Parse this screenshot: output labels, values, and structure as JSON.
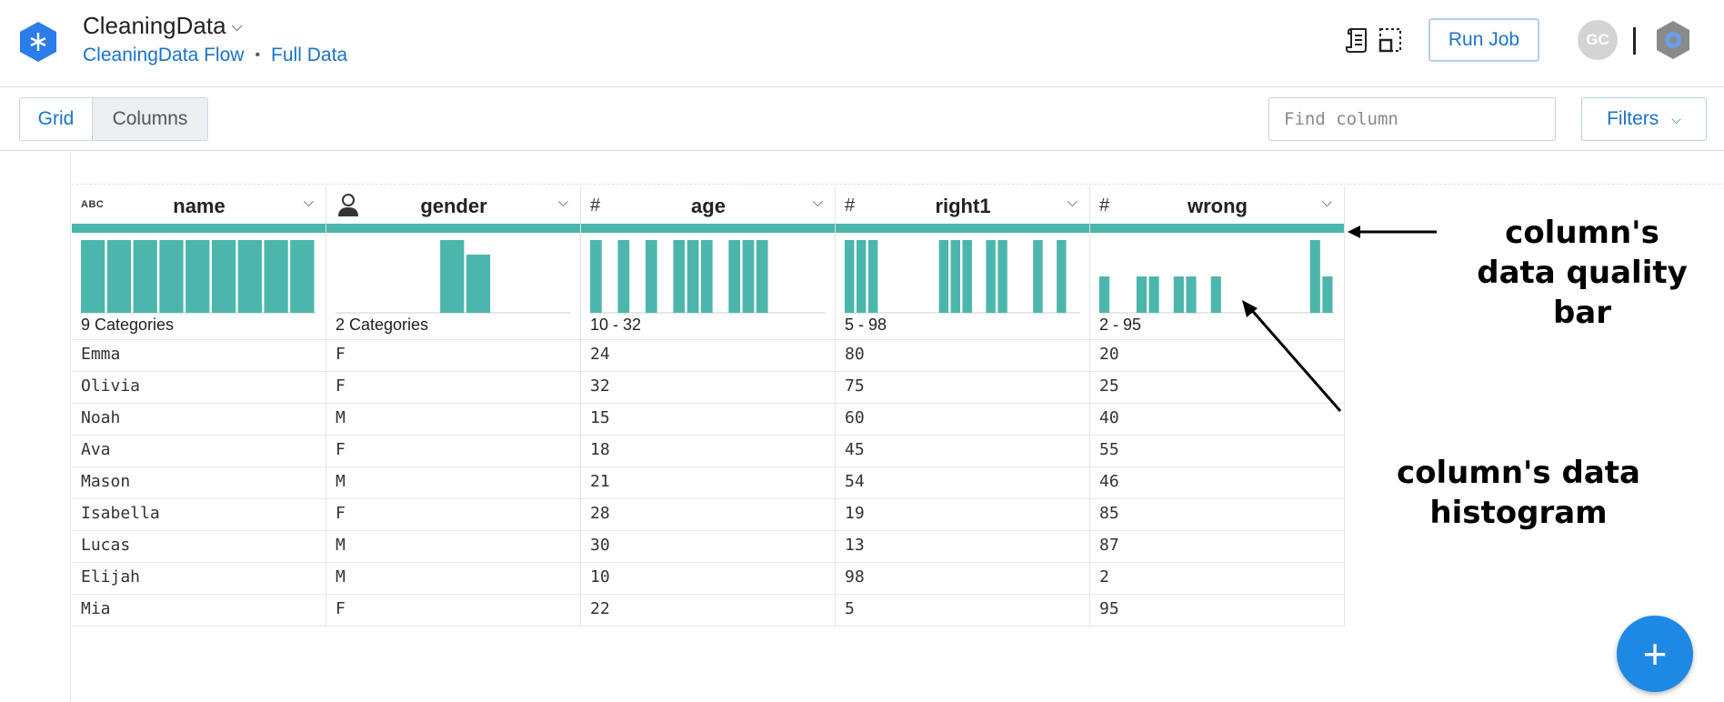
{
  "header": {
    "title": "CleaningData",
    "breadcrumb": [
      "CleaningData Flow",
      "Full Data"
    ],
    "run_job_label": "Run Job",
    "avatar_initials": "GC",
    "logo_icon": "dataprep-hex-logo",
    "icons": [
      "recipe-icon",
      "sample-icon",
      "cloud-project-icon"
    ]
  },
  "toolbar": {
    "grid_label": "Grid",
    "columns_label": "Columns",
    "find_placeholder": "Find column",
    "filters_label": "Filters"
  },
  "columns": [
    {
      "name": "name",
      "type": "ABC",
      "summary": "9 Categories",
      "hist": [
        1,
        1,
        1,
        1,
        1,
        1,
        1,
        1,
        1
      ]
    },
    {
      "name": "gender",
      "type": "person",
      "summary": "2 Categories",
      "hist": [
        0,
        0,
        0,
        0,
        1,
        0.8,
        0,
        0,
        0
      ]
    },
    {
      "name": "age",
      "type": "#",
      "summary": "10 - 32",
      "hist": [
        1,
        0,
        1,
        0,
        1,
        0,
        1,
        1,
        1,
        0,
        1,
        1,
        1,
        0,
        0,
        0,
        0
      ]
    },
    {
      "name": "right1",
      "type": "#",
      "summary": "5 - 98",
      "hist": [
        1,
        1,
        1,
        0,
        0,
        0,
        0,
        0,
        1,
        1,
        1,
        0,
        1,
        1,
        0,
        0,
        1,
        0,
        1,
        0
      ]
    },
    {
      "name": "wrong",
      "type": "#",
      "summary": "2 - 95",
      "hist": [
        0.5,
        0,
        0,
        0.5,
        0.5,
        0,
        0.5,
        0.5,
        0,
        0.5,
        0,
        0,
        0,
        0,
        0,
        0,
        0,
        1,
        0.5
      ]
    }
  ],
  "rows": [
    [
      "Emma",
      "F",
      "24",
      "80",
      "20"
    ],
    [
      "Olivia",
      "F",
      "32",
      "75",
      "25"
    ],
    [
      "Noah",
      "M",
      "15",
      "60",
      "40"
    ],
    [
      "Ava",
      "F",
      "18",
      "45",
      "55"
    ],
    [
      "Mason",
      "M",
      "21",
      "54",
      "46"
    ],
    [
      "Isabella",
      "F",
      "28",
      "19",
      "85"
    ],
    [
      "Lucas",
      "M",
      "30",
      "13",
      "87"
    ],
    [
      "Elijah",
      "M",
      "10",
      "98",
      "2"
    ],
    [
      "Mia",
      "F",
      "22",
      "5",
      "95"
    ]
  ],
  "annotations": {
    "quality": "column's\ndata quality\nbar",
    "histogram": "column's data\nhistogram"
  },
  "colors": {
    "accent": "#1a73c8",
    "teal": "#4db6ac",
    "fab": "#1e88e5"
  }
}
